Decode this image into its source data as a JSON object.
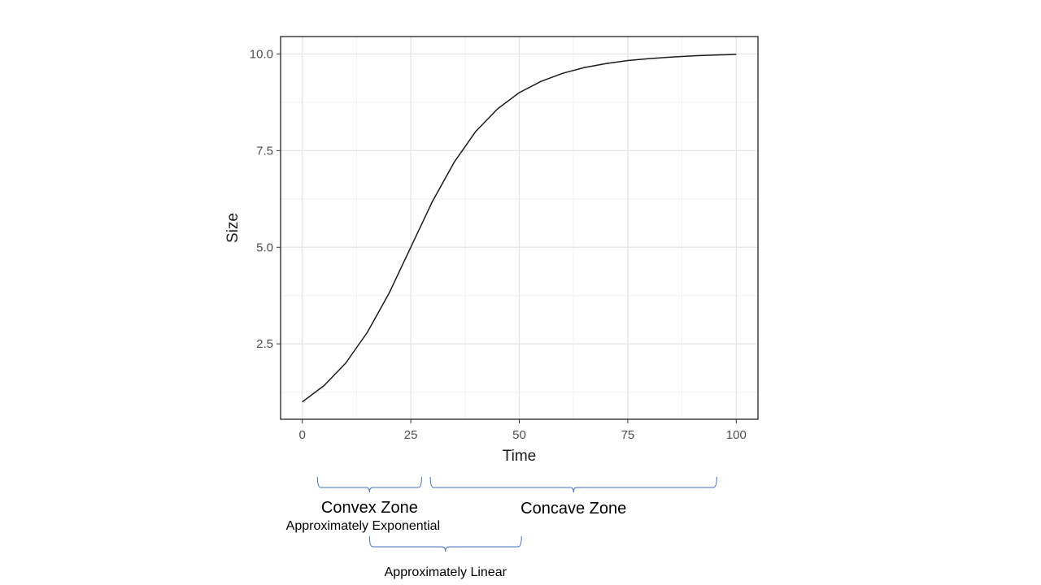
{
  "chart_data": {
    "type": "line",
    "title": "",
    "xlabel": "Time",
    "ylabel": "Size",
    "xlim": [
      -5,
      105
    ],
    "ylim": [
      0.55,
      10.45
    ],
    "x_ticks": [
      0,
      25,
      50,
      75,
      100
    ],
    "x_tick_labels": [
      "0",
      "25",
      "50",
      "75",
      "100"
    ],
    "y_ticks": [
      2.5,
      5.0,
      7.5,
      10.0
    ],
    "y_tick_labels": [
      "2.5",
      "5.0",
      "7.5",
      "10.0"
    ],
    "x_minor_ticks": [
      12.5,
      37.5,
      62.5,
      87.5
    ],
    "y_minor_ticks": [
      1.25,
      3.75,
      6.25,
      8.75
    ],
    "grid": true,
    "series": [
      {
        "x": [
          0,
          5,
          10,
          15,
          20,
          25,
          30,
          35,
          40,
          45,
          50,
          55,
          60,
          65,
          70,
          75,
          80,
          85,
          90,
          95,
          100
        ],
        "values": [
          1.0,
          1.42,
          2.0,
          2.8,
          3.81,
          5.0,
          6.19,
          7.2,
          8.0,
          8.58,
          9.0,
          9.29,
          9.5,
          9.65,
          9.75,
          9.83,
          9.88,
          9.92,
          9.95,
          9.97,
          9.99
        ]
      }
    ],
    "annotations": {
      "convex": {
        "label": "Convex Zone",
        "sublabel": "Approximately Exponential",
        "x_range": [
          3.5,
          27.5
        ]
      },
      "concave": {
        "label": "Concave Zone",
        "x_range": [
          29.5,
          95.5
        ]
      },
      "linear": {
        "label": "Approximately Linear",
        "x_range": [
          15.5,
          50.5
        ]
      }
    },
    "brace_color": "#4472c4"
  }
}
